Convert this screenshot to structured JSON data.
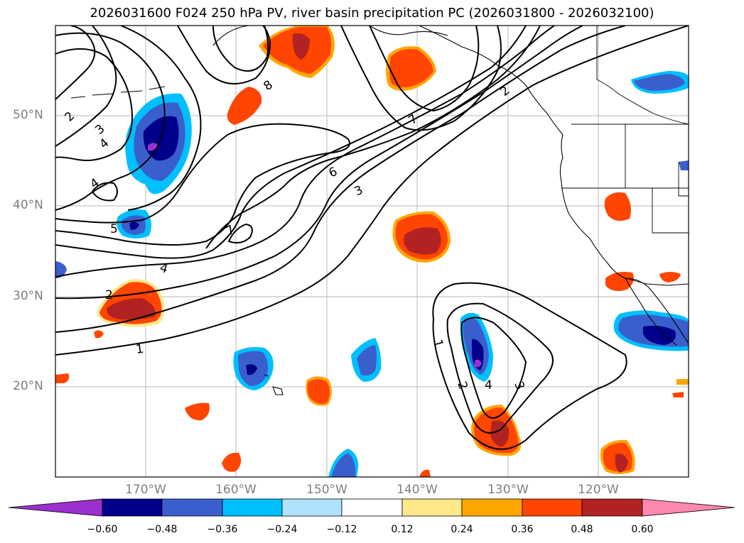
{
  "title": "2026031600 F024 250 hPa PV, river basin precipitation PC (2026031800 - 2026032100)",
  "lat_labels": [
    "50°N",
    "40°N",
    "30°N",
    "20°N"
  ],
  "lon_labels": [
    "170°W",
    "160°W",
    "150°W",
    "140°W",
    "130°W",
    "120°W"
  ],
  "colorbar": {
    "ticks": [
      "−0.60",
      "−0.48",
      "−0.36",
      "−0.24",
      "−0.12",
      "0.12",
      "0.24",
      "0.36",
      "0.48",
      "0.60"
    ],
    "colors": [
      "#9b30d0",
      "#00008b",
      "#3a5fcd",
      "#00bfff",
      "#b0e2ff",
      "#ffffff",
      "#ffe88a",
      "#ffa500",
      "#ff4500",
      "#b22222",
      "#ff88b0"
    ]
  },
  "contour_labels": {
    "c1": "1",
    "c2": "2",
    "c3": "3",
    "c4": "4",
    "c5": "5",
    "c6": "6",
    "c7": "7",
    "c8": "8"
  },
  "map_data": {
    "lat_range": [
      10,
      60
    ],
    "lon_range": [
      -180,
      -110
    ],
    "field": "250 hPa PV contours with precipitation PC shading"
  }
}
